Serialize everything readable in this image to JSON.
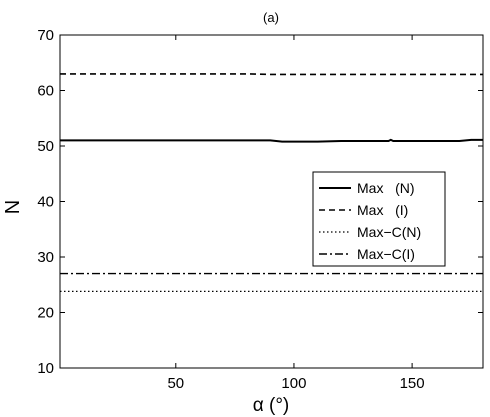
{
  "chart_data": {
    "type": "line",
    "title": "(a)",
    "xlabel": "α (°)",
    "ylabel": "N",
    "xlim": [
      1,
      180
    ],
    "ylim": [
      10,
      70
    ],
    "xticks": [
      50,
      100,
      150
    ],
    "yticks": [
      10,
      20,
      30,
      40,
      50,
      60,
      70
    ],
    "grid": false,
    "legend_position": "right",
    "series": [
      {
        "name": "Max   (N)",
        "style": "solid",
        "x": [
          1,
          20,
          40,
          60,
          80,
          90,
          95,
          100,
          110,
          120,
          130,
          140,
          141,
          142,
          150,
          160,
          170,
          175,
          180
        ],
        "y": [
          51.0,
          51.0,
          51.0,
          51.0,
          51.0,
          51.0,
          50.8,
          50.8,
          50.8,
          50.9,
          50.9,
          50.9,
          51.1,
          50.9,
          50.9,
          50.9,
          50.9,
          51.1,
          51.1
        ]
      },
      {
        "name": "Max   (I)",
        "style": "dashed",
        "x": [
          1,
          40,
          80,
          90,
          100,
          120,
          140,
          160,
          180
        ],
        "y": [
          63.0,
          63.0,
          63.0,
          62.9,
          62.9,
          62.9,
          62.9,
          62.9,
          62.9
        ]
      },
      {
        "name": "Max−C(N)",
        "style": "dotted",
        "x": [
          1,
          180
        ],
        "y": [
          23.8,
          23.8
        ]
      },
      {
        "name": "Max−C(I)",
        "style": "dashdot",
        "x": [
          1,
          180
        ],
        "y": [
          27.0,
          27.0
        ]
      }
    ]
  }
}
